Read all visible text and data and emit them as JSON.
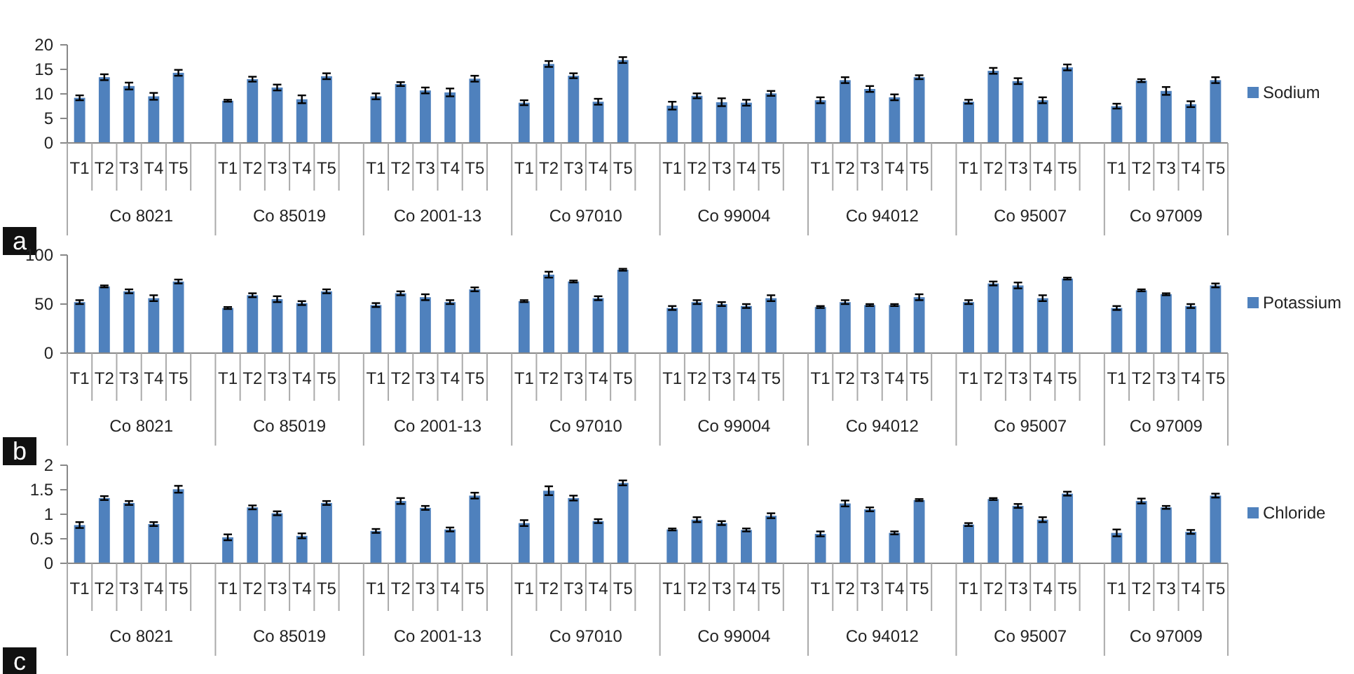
{
  "chart_data": [
    {
      "type": "bar",
      "title": "a",
      "categories": [
        "T1",
        "T2",
        "T3",
        "T4",
        "T5",
        null,
        "T1",
        "T2",
        "T3",
        "T4",
        "T5",
        null,
        "T1",
        "T2",
        "T3",
        "T4",
        "T5",
        null,
        "T1",
        "T2",
        "T3",
        "T4",
        "T5",
        null,
        "T1",
        "T2",
        "T3",
        "T4",
        "T5",
        null,
        "T1",
        "T2",
        "T3",
        "T4",
        "T5",
        null,
        "T1",
        "T2",
        "T3",
        "T4",
        "T5",
        null,
        "T1",
        "T2",
        "T3",
        "T4",
        "T5"
      ],
      "annotations": [
        "Co 8021",
        "Co 85019",
        "Co 2001-13",
        "Co 97010",
        "Co 99004",
        "Co 94012",
        "Co 95007",
        "Co 97009"
      ],
      "series": [
        {
          "name": "Sodium",
          "color": "#4f81bd",
          "values": [
            9.2,
            13.4,
            11.6,
            9.5,
            14.3,
            null,
            8.6,
            13.0,
            11.3,
            8.9,
            13.6,
            null,
            9.5,
            12.0,
            10.7,
            10.3,
            13.1,
            null,
            8.2,
            16.1,
            13.7,
            8.4,
            16.9,
            null,
            7.6,
            9.6,
            8.3,
            8.2,
            10.1,
            null,
            8.7,
            12.8,
            11.0,
            9.3,
            13.4,
            null,
            8.4,
            14.7,
            12.6,
            8.7,
            15.4,
            null,
            7.5,
            12.7,
            10.6,
            7.9,
            12.8
          ],
          "errors": [
            0.5,
            0.6,
            0.7,
            0.7,
            0.6,
            null,
            0.2,
            0.5,
            0.6,
            0.8,
            0.6,
            null,
            0.6,
            0.4,
            0.6,
            0.8,
            0.6,
            null,
            0.5,
            0.6,
            0.5,
            0.6,
            0.6,
            null,
            0.8,
            0.5,
            0.8,
            0.6,
            0.5,
            null,
            0.6,
            0.6,
            0.6,
            0.6,
            0.4,
            null,
            0.4,
            0.6,
            0.6,
            0.6,
            0.6,
            null,
            0.5,
            0.3,
            0.8,
            0.6,
            0.6
          ]
        }
      ],
      "ylim": [
        0,
        20
      ],
      "yticks": [
        0,
        5,
        10,
        15,
        20
      ],
      "legend": "right",
      "tick_labels": "y",
      "grid": false
    },
    {
      "type": "bar",
      "title": "b",
      "categories": [
        "T1",
        "T2",
        "T3",
        "T4",
        "T5",
        null,
        "T1",
        "T2",
        "T3",
        "T4",
        "T5",
        null,
        "T1",
        "T2",
        "T3",
        "T4",
        "T5",
        null,
        "T1",
        "T2",
        "T3",
        "T4",
        "T5",
        null,
        "T1",
        "T2",
        "T3",
        "T4",
        "T5",
        null,
        "T1",
        "T2",
        "T3",
        "T4",
        "T5",
        null,
        "T1",
        "T2",
        "T3",
        "T4",
        "T5",
        null,
        "T1",
        "T2",
        "T3",
        "T4",
        "T5"
      ],
      "annotations": [
        "Co 8021",
        "Co 85019",
        "Co 2001-13",
        "Co 97010",
        "Co 99004",
        "Co 94012",
        "Co 95007",
        "Co 97009"
      ],
      "series": [
        {
          "name": "Potassium",
          "color": "#4f81bd",
          "values": [
            52,
            68,
            63,
            56,
            73,
            null,
            46,
            59,
            55,
            51,
            63,
            null,
            49,
            61,
            57,
            52,
            65,
            null,
            53,
            80,
            73,
            56,
            85,
            null,
            46,
            52,
            50,
            48,
            56,
            null,
            47,
            52,
            49,
            49,
            57,
            null,
            52,
            71,
            69,
            56,
            76,
            null,
            46,
            64,
            60,
            48,
            69
          ],
          "errors": [
            2,
            1,
            2,
            3,
            2,
            null,
            1,
            2,
            3,
            2,
            2,
            null,
            2,
            2,
            3,
            2,
            2,
            null,
            1,
            3,
            1,
            2,
            1,
            null,
            2,
            2,
            2,
            2,
            3,
            null,
            1,
            2,
            1,
            1,
            3,
            null,
            2,
            2,
            3,
            3,
            1,
            null,
            2,
            1,
            1,
            2,
            2
          ]
        }
      ],
      "ylim": [
        0,
        100
      ],
      "yticks": [
        0,
        50,
        100
      ],
      "legend": "right",
      "tick_labels": "y",
      "grid": false
    },
    {
      "type": "bar",
      "title": "c",
      "categories": [
        "T1",
        "T2",
        "T3",
        "T4",
        "T5",
        null,
        "T1",
        "T2",
        "T3",
        "T4",
        "T5",
        null,
        "T1",
        "T2",
        "T3",
        "T4",
        "T5",
        null,
        "T1",
        "T2",
        "T3",
        "T4",
        "T5",
        null,
        "T1",
        "T2",
        "T3",
        "T4",
        "T5",
        null,
        "T1",
        "T2",
        "T3",
        "T4",
        "T5",
        null,
        "T1",
        "T2",
        "T3",
        "T4",
        "T5",
        null,
        "T1",
        "T2",
        "T3",
        "T4",
        "T5"
      ],
      "annotations": [
        "Co 8021",
        "Co 85019",
        "Co 2001-13",
        "Co 97010",
        "Co 99004",
        "Co 94012",
        "Co 95007",
        "Co 97009"
      ],
      "series": [
        {
          "name": "Chloride",
          "color": "#4f81bd",
          "values": [
            0.78,
            1.33,
            1.23,
            0.8,
            1.51,
            null,
            0.53,
            1.14,
            1.02,
            0.56,
            1.23,
            null,
            0.66,
            1.27,
            1.13,
            0.69,
            1.38,
            null,
            0.82,
            1.48,
            1.33,
            0.86,
            1.64,
            null,
            0.69,
            0.89,
            0.82,
            0.68,
            0.97,
            null,
            0.6,
            1.22,
            1.1,
            0.62,
            1.29,
            null,
            0.79,
            1.31,
            1.17,
            0.89,
            1.42,
            null,
            0.62,
            1.27,
            1.14,
            0.64,
            1.38
          ],
          "errors": [
            0.06,
            0.04,
            0.04,
            0.04,
            0.07,
            null,
            0.06,
            0.04,
            0.04,
            0.05,
            0.04,
            null,
            0.04,
            0.06,
            0.04,
            0.04,
            0.06,
            null,
            0.06,
            0.09,
            0.05,
            0.04,
            0.05,
            null,
            0.02,
            0.05,
            0.04,
            0.03,
            0.05,
            null,
            0.05,
            0.06,
            0.04,
            0.03,
            0.02,
            null,
            0.03,
            0.02,
            0.04,
            0.05,
            0.04,
            null,
            0.07,
            0.05,
            0.03,
            0.04,
            0.04
          ]
        }
      ],
      "ylim": [
        0,
        2
      ],
      "yticks": [
        0,
        0.5,
        1,
        1.5,
        2
      ],
      "legend": "right",
      "tick_labels": "y",
      "grid": false
    }
  ]
}
